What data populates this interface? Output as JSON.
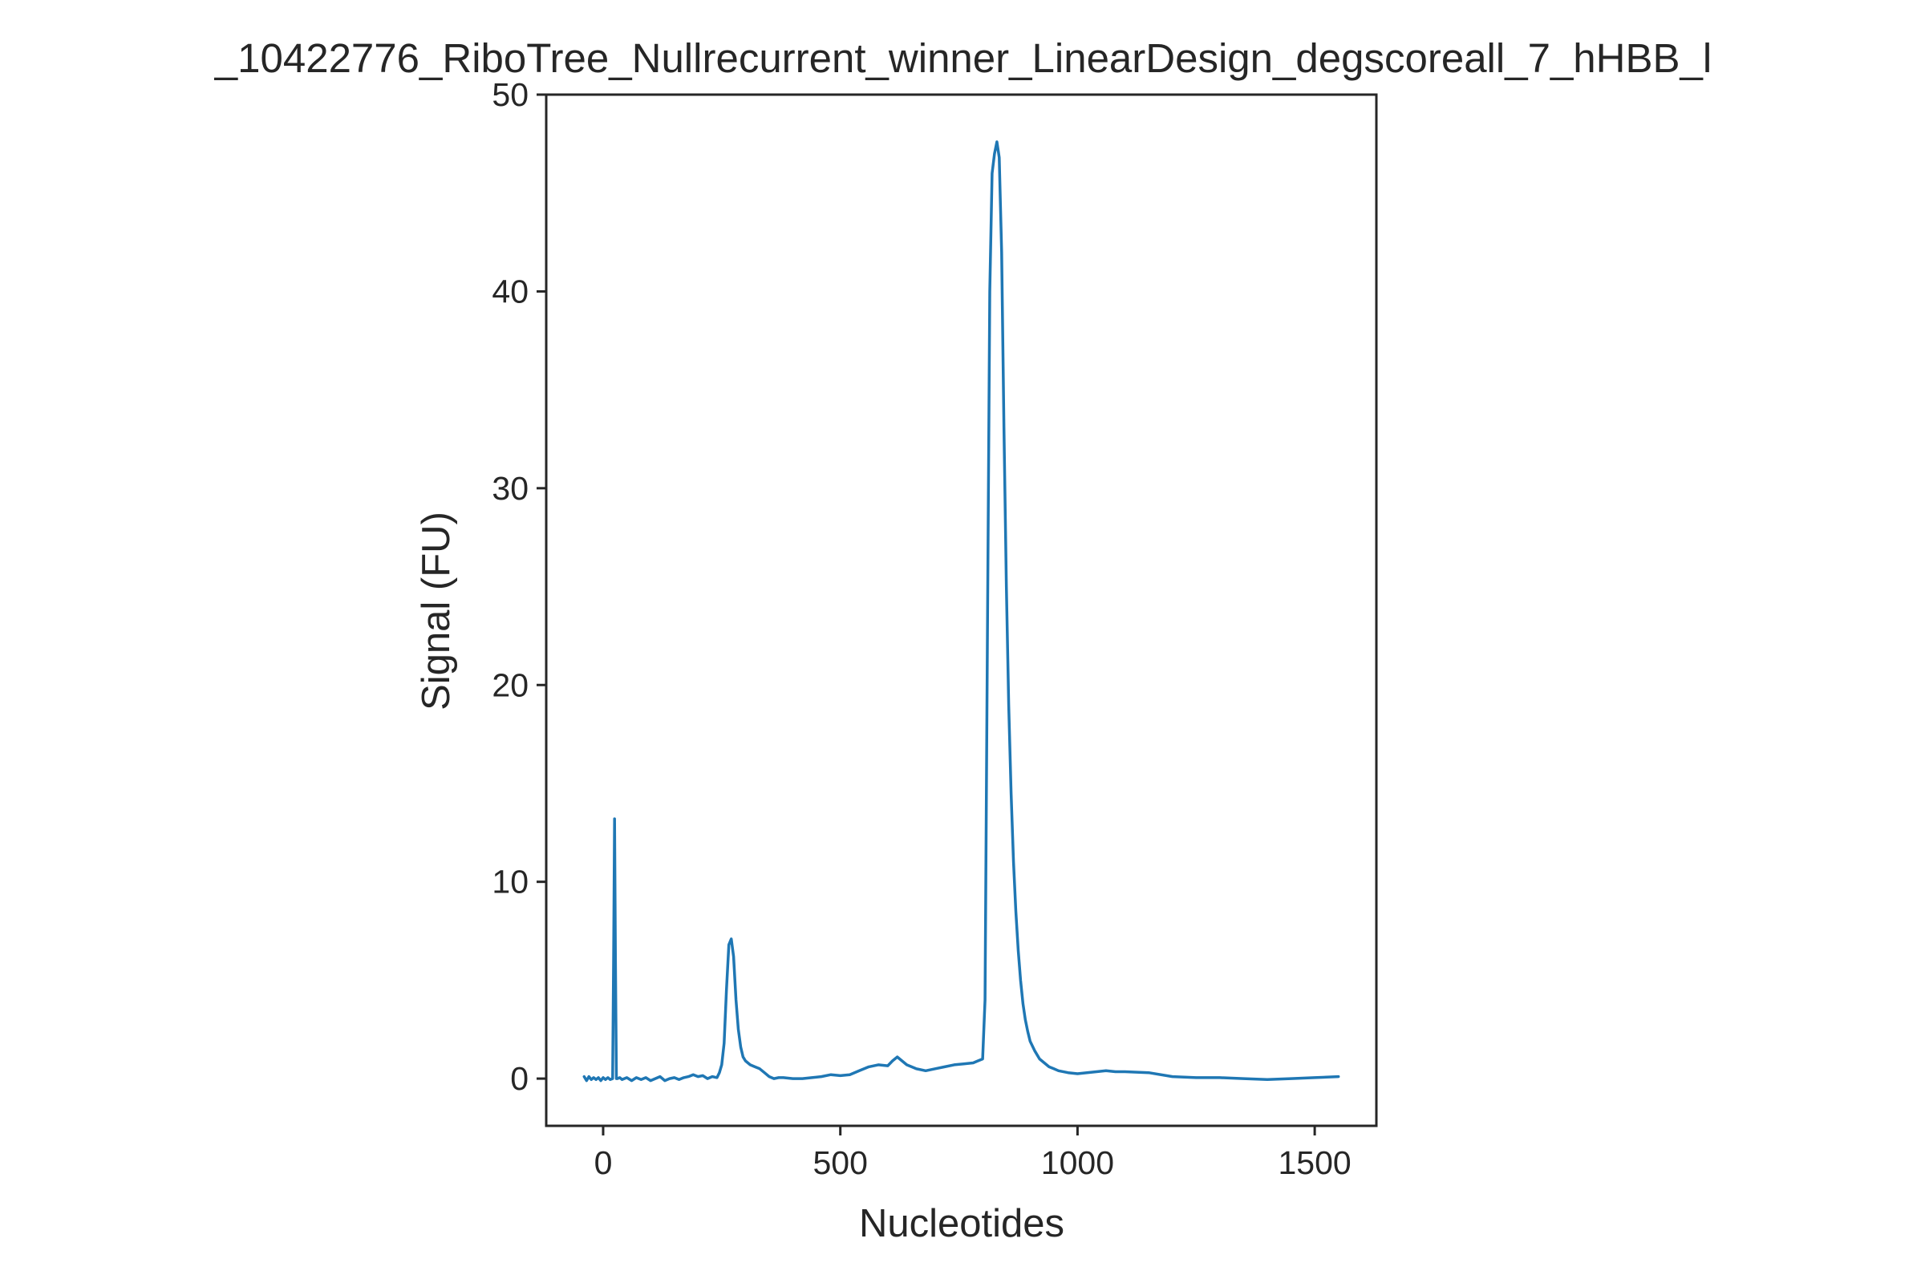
{
  "chart_data": {
    "type": "line",
    "title": "_10422776_RiboTree_Nullrecurrent_winner_LinearDesign_degscoreall_7_hHBB_l",
    "xlabel": "Nucleotides",
    "ylabel": "Signal (FU)",
    "xlim": [
      -120,
      1630
    ],
    "ylim": [
      -2.4,
      50
    ],
    "xticks": [
      0,
      500,
      1000,
      1500
    ],
    "yticks": [
      0,
      10,
      20,
      30,
      40,
      50
    ],
    "xtick_labels": [
      "0",
      "500",
      "1000",
      "1500"
    ],
    "ytick_labels": [
      "0",
      "10",
      "20",
      "30",
      "40",
      "50"
    ],
    "grid": false,
    "series": [
      {
        "color": "#1f77b4",
        "x": [
          -40,
          -35,
          -30,
          -25,
          -20,
          -15,
          -10,
          -5,
          0,
          5,
          10,
          15,
          20,
          22,
          24,
          26,
          28,
          30,
          35,
          40,
          50,
          60,
          70,
          80,
          90,
          100,
          110,
          120,
          130,
          140,
          150,
          160,
          170,
          180,
          190,
          200,
          210,
          220,
          230,
          240,
          245,
          250,
          255,
          260,
          265,
          270,
          275,
          280,
          285,
          290,
          295,
          300,
          310,
          320,
          330,
          340,
          350,
          360,
          370,
          380,
          400,
          420,
          440,
          460,
          480,
          500,
          520,
          540,
          560,
          580,
          600,
          610,
          620,
          630,
          640,
          660,
          680,
          700,
          720,
          740,
          760,
          780,
          790,
          800,
          805,
          810,
          815,
          820,
          825,
          830,
          835,
          840,
          845,
          850,
          855,
          860,
          865,
          870,
          875,
          880,
          885,
          890,
          895,
          900,
          910,
          920,
          930,
          940,
          950,
          960,
          980,
          1000,
          1020,
          1040,
          1060,
          1080,
          1100,
          1150,
          1200,
          1250,
          1300,
          1350,
          1400,
          1450,
          1500,
          1550
        ],
        "y": [
          0.1,
          -0.1,
          0.1,
          -0.05,
          0.05,
          -0.05,
          0.05,
          -0.1,
          0.05,
          -0.05,
          0.05,
          -0.05,
          0.0,
          6.0,
          13.2,
          6.0,
          0.0,
          0.0,
          0.05,
          -0.05,
          0.05,
          -0.1,
          0.05,
          -0.05,
          0.05,
          -0.1,
          0.0,
          0.1,
          -0.1,
          0.0,
          0.05,
          -0.05,
          0.05,
          0.1,
          0.2,
          0.1,
          0.15,
          0.0,
          0.1,
          0.05,
          0.3,
          0.7,
          1.8,
          4.5,
          6.8,
          7.1,
          6.2,
          4.0,
          2.5,
          1.6,
          1.1,
          0.9,
          0.7,
          0.6,
          0.5,
          0.3,
          0.1,
          0.0,
          0.05,
          0.05,
          0.0,
          0.0,
          0.05,
          0.1,
          0.2,
          0.15,
          0.2,
          0.4,
          0.6,
          0.7,
          0.65,
          0.9,
          1.1,
          0.9,
          0.7,
          0.5,
          0.4,
          0.5,
          0.6,
          0.7,
          0.75,
          0.8,
          0.9,
          1.0,
          4.0,
          22.0,
          40.0,
          46.0,
          47.0,
          47.6,
          46.8,
          42.0,
          33.0,
          25.0,
          19.0,
          14.5,
          11.0,
          8.5,
          6.5,
          5.0,
          3.8,
          3.0,
          2.4,
          1.9,
          1.4,
          1.0,
          0.8,
          0.6,
          0.5,
          0.4,
          0.3,
          0.25,
          0.3,
          0.35,
          0.4,
          0.35,
          0.35,
          0.3,
          0.1,
          0.05,
          0.05,
          0.0,
          -0.05,
          0.0,
          0.05,
          0.1
        ]
      }
    ]
  }
}
